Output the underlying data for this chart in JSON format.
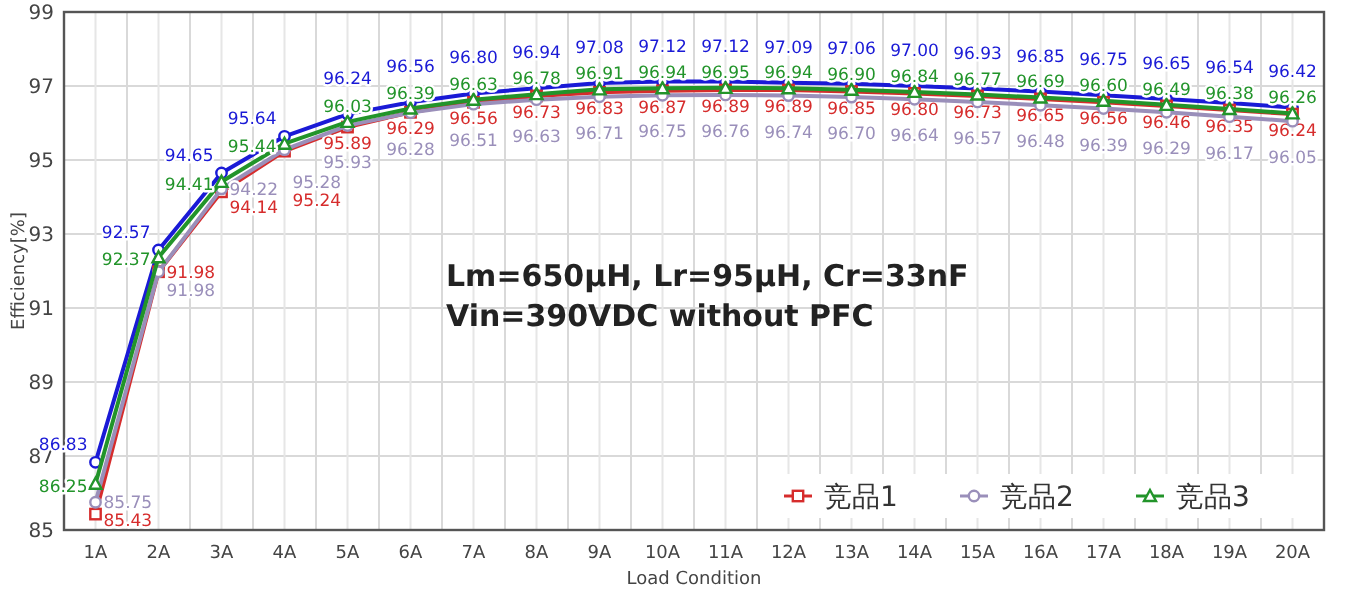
{
  "chart_data": {
    "type": "line",
    "xlabel": "Load Condition",
    "ylabel": "Efficiency[%]",
    "categories": [
      "1A",
      "2A",
      "3A",
      "4A",
      "5A",
      "6A",
      "7A",
      "8A",
      "9A",
      "10A",
      "11A",
      "12A",
      "13A",
      "14A",
      "15A",
      "16A",
      "17A",
      "18A",
      "19A",
      "20A"
    ],
    "ylim": [
      85,
      99
    ],
    "yticks": [
      85,
      87,
      89,
      91,
      93,
      95,
      97,
      99
    ],
    "grid": true,
    "legend": "bottom right",
    "marker": "circle",
    "annotations": [
      "Lm=650μH, Lr=95μH, Cr=33nF",
      "Vin=390VDC without PFC"
    ],
    "series": [
      {
        "color": "#1a1ad6",
        "values": [
          86.83,
          92.57,
          94.65,
          95.64,
          96.24,
          96.56,
          96.8,
          96.94,
          97.08,
          97.12,
          97.12,
          97.09,
          97.06,
          97.0,
          96.93,
          96.85,
          96.75,
          96.65,
          96.54,
          96.42
        ],
        "value_labels": [
          "86.83",
          "92.57",
          "94.65",
          "95.64",
          "96.24",
          "96.56",
          "96.80",
          "96.94",
          "97.08",
          "97.12",
          "97.12",
          "97.09",
          "97.06",
          "97.00",
          "96.93",
          "96.85",
          "96.75",
          "96.65",
          "96.54",
          "96.42"
        ]
      },
      {
        "name": "竞品1",
        "color": "#d62c2c",
        "marker": "square",
        "values": [
          85.43,
          91.98,
          94.14,
          95.24,
          95.89,
          96.29,
          96.56,
          96.73,
          96.83,
          96.87,
          96.89,
          96.89,
          96.85,
          96.8,
          96.73,
          96.65,
          96.56,
          96.46,
          96.35,
          96.24
        ],
        "value_labels": [
          "85.43",
          "91.98",
          "94.14",
          "95.24",
          "95.89",
          "96.29",
          "96.56",
          "96.73",
          "96.83",
          "96.87",
          "96.89",
          "96.89",
          "96.85",
          "96.80",
          "96.73",
          "96.65",
          "96.56",
          "96.46",
          "96.35",
          "96.24"
        ]
      },
      {
        "name": "竞品2",
        "color": "#9a8fba",
        "values": [
          85.75,
          91.98,
          94.22,
          95.28,
          95.93,
          96.28,
          96.51,
          96.63,
          96.71,
          96.75,
          96.76,
          96.74,
          96.7,
          96.64,
          96.57,
          96.48,
          96.39,
          96.29,
          96.17,
          96.05
        ],
        "value_labels": [
          "85.75",
          "91.98",
          "94.22",
          "95.28",
          "95.93",
          "96.28",
          "96.51",
          "96.63",
          "96.71",
          "96.75",
          "96.76",
          "96.74",
          "96.70",
          "96.64",
          "96.57",
          "96.48",
          "96.39",
          "96.29",
          "96.17",
          "96.05"
        ]
      },
      {
        "name": "竞品3",
        "color": "#22942a",
        "marker": "triangle",
        "values": [
          86.25,
          92.37,
          94.41,
          95.44,
          96.03,
          96.39,
          96.63,
          96.78,
          96.91,
          96.94,
          96.95,
          96.94,
          96.9,
          96.84,
          96.77,
          96.69,
          96.6,
          96.49,
          96.38,
          96.26
        ],
        "value_labels": [
          "86.25",
          "92.37",
          "94.41",
          "95.44",
          "96.03",
          "96.39",
          "96.63",
          "96.78",
          "96.91",
          "96.94",
          "96.95",
          "96.94",
          "96.90",
          "96.84",
          "96.77",
          "96.69",
          "96.60",
          "96.49",
          "96.38",
          "96.26"
        ]
      }
    ]
  }
}
